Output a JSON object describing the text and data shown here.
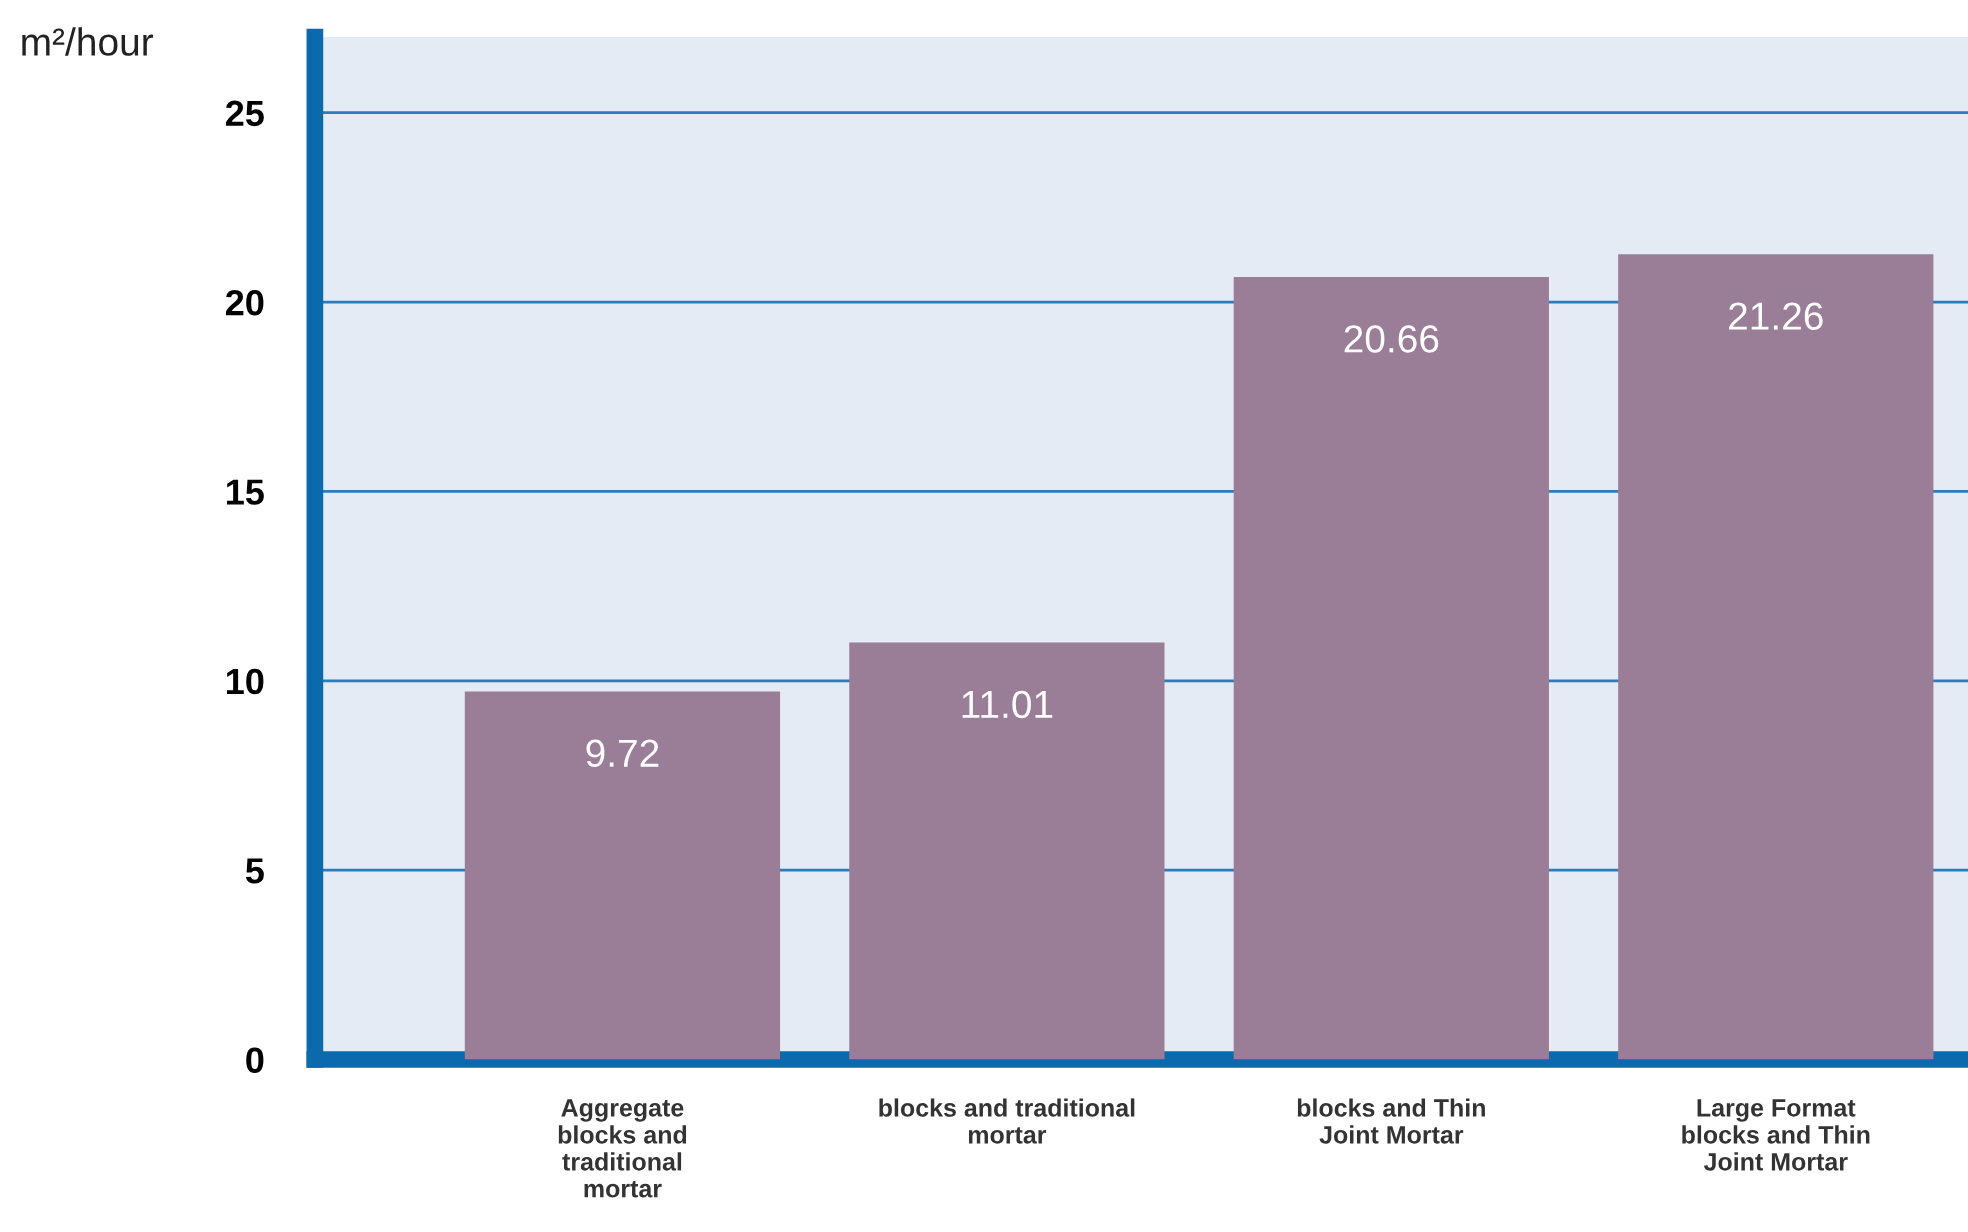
{
  "chart_data": {
    "type": "bar",
    "ylabel": "m²/hour",
    "categories": [
      "Aggregate\nblocks and\ntraditional\nmortar",
      "blocks and traditional\nmortar",
      "blocks and Thin\nJoint Mortar",
      "Large Format\nblocks and Thin\nJoint Mortar"
    ],
    "values": [
      9.72,
      11.01,
      20.66,
      21.26
    ],
    "color": "#9a7e98",
    "ylim": [
      0,
      27
    ],
    "yticks": [
      0,
      5,
      10,
      15,
      20,
      25
    ],
    "grid": "y",
    "data_labels": true
  }
}
